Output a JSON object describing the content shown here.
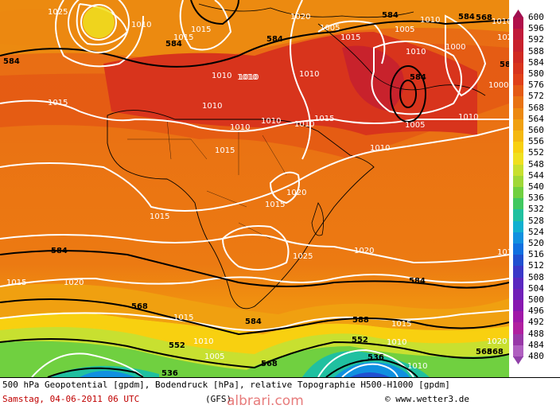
{
  "map": {
    "description_labels": {
      "isobars": [
        "1005",
        "1010",
        "1015",
        "1020",
        "1025"
      ],
      "geopotential": [
        "536",
        "552",
        "568",
        "584",
        "588"
      ]
    },
    "isobar_labels": [
      {
        "text": "1025"
      },
      {
        "text": "1010"
      },
      {
        "text": "1015"
      },
      {
        "text": "1015"
      },
      {
        "text": "1010"
      },
      {
        "text": "1020"
      },
      {
        "text": "1005"
      },
      {
        "text": "1005"
      },
      {
        "text": "1010"
      },
      {
        "text": "1000"
      },
      {
        "text": "1010"
      },
      {
        "text": "1015"
      },
      {
        "text": "1010"
      },
      {
        "text": "1010"
      },
      {
        "text": "1010"
      },
      {
        "text": "1010"
      },
      {
        "text": "1015"
      },
      {
        "text": "1010"
      },
      {
        "text": "1010"
      },
      {
        "text": "1010"
      },
      {
        "text": "1000"
      },
      {
        "text": "1010"
      },
      {
        "text": "1005"
      },
      {
        "text": "1010"
      },
      {
        "text": "1015"
      },
      {
        "text": "1010"
      },
      {
        "text": "1020"
      },
      {
        "text": "1015"
      },
      {
        "text": "1015"
      },
      {
        "text": "1025"
      },
      {
        "text": "1020"
      },
      {
        "text": "1015"
      },
      {
        "text": "1020"
      },
      {
        "text": "1020"
      },
      {
        "text": "1015"
      },
      {
        "text": "1015"
      },
      {
        "text": "1010"
      },
      {
        "text": "1005"
      },
      {
        "text": "1010"
      },
      {
        "text": "1010"
      },
      {
        "text": "1015"
      },
      {
        "text": "1020"
      },
      {
        "text": "1015"
      }
    ],
    "geopotential_labels": [
      {
        "text": "584"
      },
      {
        "text": "584"
      },
      {
        "text": "584"
      },
      {
        "text": "584"
      },
      {
        "text": "584"
      },
      {
        "text": "584"
      },
      {
        "text": "584"
      },
      {
        "text": "568"
      },
      {
        "text": "552"
      },
      {
        "text": "536"
      },
      {
        "text": "584"
      },
      {
        "text": "568"
      },
      {
        "text": "588"
      },
      {
        "text": "552"
      },
      {
        "text": "536"
      },
      {
        "text": "568"
      },
      {
        "text": "568"
      },
      {
        "text": "584"
      },
      {
        "text": "584"
      },
      {
        "text": "568"
      }
    ]
  },
  "legend": {
    "levels": [
      "600",
      "596",
      "592",
      "588",
      "584",
      "580",
      "576",
      "572",
      "568",
      "564",
      "560",
      "556",
      "552",
      "548",
      "544",
      "540",
      "536",
      "532",
      "528",
      "524",
      "520",
      "516",
      "512",
      "508",
      "504",
      "500",
      "496",
      "492",
      "488",
      "484",
      "480"
    ],
    "colors": [
      "#b0104a",
      "#c01a3a",
      "#c8222c",
      "#d02a22",
      "#d8341c",
      "#e04018",
      "#e45a14",
      "#e87212",
      "#ec8810",
      "#f0a010",
      "#f4b810",
      "#f8d010",
      "#f0e020",
      "#c8e030",
      "#a0d838",
      "#70d040",
      "#40c860",
      "#20c0a0",
      "#10b0d0",
      "#1090e0",
      "#1070e0",
      "#2050d0",
      "#3a38c8",
      "#5a28c0",
      "#7020b8",
      "#8818b0",
      "#a018a8",
      "#b020a0",
      "#9838a8",
      "#b060c0"
    ]
  },
  "footer": {
    "line1": "500 hPa Geopotential [gpdm], Bodendruck [hPa], relative Topographie H500-H1000 [gpdm]",
    "line2": "Samstag, 04-06-2011  06 UTC",
    "center": "(GFS)",
    "credit": "© www.wetter3.de"
  },
  "watermark": "albrari.com"
}
